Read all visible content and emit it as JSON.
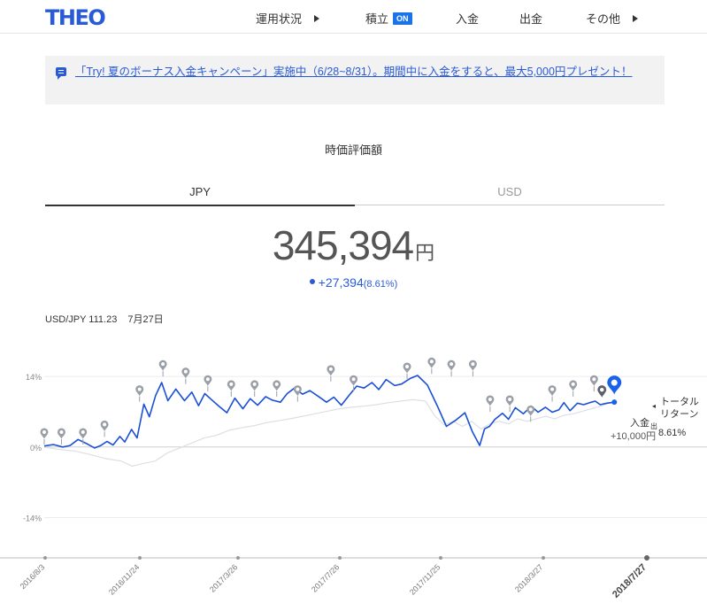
{
  "header": {
    "logo": "THEO",
    "nav": [
      {
        "label": "運用状況",
        "arrow": true
      },
      {
        "label": "積立",
        "badge": "ON"
      },
      {
        "label": "入金"
      },
      {
        "label": "出金"
      },
      {
        "label": "その他",
        "arrow": true
      }
    ]
  },
  "banner": {
    "icon": "chat-icon",
    "text": "「Try! 夏のボーナス入金キャンペーン」実施中（6/28~8/31）。期間中に入金をすると、最大5,000円プレゼント！"
  },
  "valuation": {
    "title": "時価評価額",
    "tabs": [
      "JPY",
      "USD"
    ],
    "active_tab": "JPY",
    "value": "345,394",
    "unit": "円",
    "change": "+27,394",
    "change_pct": "(8.61%)"
  },
  "fx": {
    "rate": "USD/JPY 111.23",
    "date": "7月27日"
  },
  "chart_data": {
    "type": "line",
    "y_tick_labels": [
      "14%",
      "0%",
      "-14%"
    ],
    "ylim": [
      -22,
      20
    ],
    "x_tick_labels": [
      "2016/8/3",
      "2016/11/24",
      "2017/3/26",
      "2017/7/26",
      "2017/11/25",
      "2018/3/27",
      "2018/7/27"
    ],
    "series": [
      {
        "color": "#1a4fd6",
        "x": [
          0,
          1.5,
          3,
          4.2,
          5.5,
          7,
          8.2,
          9.2,
          10.2,
          11.2,
          12.3,
          13.1,
          14.2,
          15.1,
          16.2,
          17.1,
          18.1,
          19.1,
          20.1,
          21.4,
          22.8,
          24,
          25.1,
          26.1,
          27.2,
          28.3,
          29.7,
          31,
          32.3,
          33.5,
          34.7,
          36,
          37.1,
          38.4,
          39.5,
          40.7,
          42,
          43.2,
          44.5,
          45.9,
          47.1,
          48.3,
          49.6,
          50.8,
          52,
          53.3,
          54.4,
          55.6,
          57,
          58.1,
          59.5,
          60.7,
          62.3,
          63.9,
          65.4,
          66.9,
          68.4,
          69.6,
          70.8,
          71.6,
          72.4,
          73.3,
          74.5,
          75.5,
          76.6,
          77.9,
          79.2,
          80.3,
          81.5,
          82.6,
          83.7,
          84.5,
          85.5,
          86.7,
          87.7,
          88.7,
          89.6,
          90.4,
          91.5,
          92.7
        ],
        "y": [
          0.2,
          0.5,
          0,
          0.3,
          1.5,
          0.6,
          -0.2,
          0.3,
          1.1,
          0.4,
          2.1,
          1,
          3.5,
          1.8,
          8.5,
          6,
          10.2,
          12.8,
          9.2,
          11.5,
          9.2,
          10.9,
          8.2,
          10.6,
          9.4,
          8.2,
          6.8,
          9.7,
          7.6,
          9.6,
          8.3,
          10,
          9.3,
          8.9,
          10.6,
          11.7,
          10.5,
          11.2,
          10.1,
          8.9,
          9.9,
          8.3,
          10.3,
          12.1,
          11.7,
          12.8,
          11.4,
          13.4,
          12.2,
          12.5,
          13.6,
          14.2,
          12.3,
          8.2,
          4.1,
          5.3,
          6.8,
          3.1,
          0.3,
          3.6,
          4.1,
          5.5,
          6.7,
          5.5,
          7.8,
          6.6,
          8.1,
          6.9,
          7.9,
          6.9,
          7.4,
          8.8,
          7.2,
          8.7,
          8.4,
          8.8,
          9.1,
          8.4,
          8.7,
          8.9
        ]
      },
      {
        "color": "#dcdfe4",
        "x": [
          0,
          2.5,
          5,
          7.5,
          10,
          12.5,
          14.3,
          16,
          18,
          20,
          22,
          24,
          26,
          28,
          30,
          32,
          34,
          36,
          38,
          40,
          42,
          44,
          46,
          48,
          50,
          52,
          54,
          56,
          58,
          60,
          62,
          63.5,
          65,
          66.5,
          68,
          69.5,
          71,
          72.5,
          74,
          75.5,
          77,
          78.5,
          80,
          81.5,
          83,
          84.5,
          86,
          87.5,
          89,
          90.5,
          92
        ],
        "y": [
          0,
          -0.5,
          -0.8,
          -1.5,
          -2.3,
          -2.8,
          -3.8,
          -3.3,
          -2.8,
          -1.2,
          -0.2,
          0.8,
          1.8,
          2.3,
          3.3,
          3.8,
          4.2,
          4.8,
          5.2,
          5.6,
          6.1,
          6.6,
          7.1,
          7.6,
          7.9,
          8.1,
          8.4,
          8.8,
          9.1,
          9.4,
          9.1,
          6.2,
          4.4,
          5.1,
          4.1,
          5.1,
          3.6,
          4.6,
          5.1,
          4.6,
          5.6,
          5.1,
          5.6,
          6.1,
          5.6,
          6.3,
          6.6,
          7.1,
          7.6,
          8.1,
          8.8
        ]
      }
    ],
    "markers": {
      "x": [
        0,
        2.8,
        6.3,
        9.8,
        15.5,
        19.3,
        23,
        26.6,
        30.4,
        34.2,
        37.8,
        41.2,
        46.6,
        50.3,
        59,
        63,
        66.2,
        69.7,
        72.5,
        75.7,
        79.1,
        82.6,
        86,
        89.4
      ],
      "y": [
        0.5,
        0.5,
        0.5,
        2,
        9,
        14,
        12.5,
        11,
        10,
        10,
        10,
        9,
        13,
        11,
        13.5,
        14.5,
        14,
        14,
        7,
        7,
        5,
        9,
        10,
        11
      ]
    },
    "annotations": {
      "deposit_label": "入金",
      "withdrawal_label": "出",
      "deposit_amount": "+10,000円",
      "total_return_label": "トータル\nリターン",
      "total_return_value": "8.61%"
    }
  }
}
